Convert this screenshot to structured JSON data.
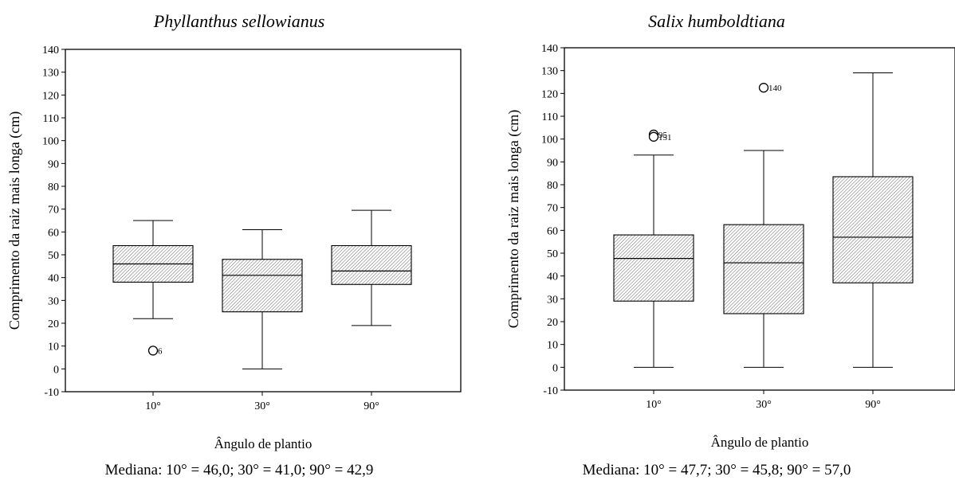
{
  "chart_data": [
    {
      "type": "box",
      "title": "Phyllanthus sellowianus",
      "xlabel": "Ângulo de plantio",
      "ylabel": "Comprimento da raiz mais longa (cm)",
      "ylim": [
        -10,
        140
      ],
      "yticks": [
        -10,
        0,
        10,
        20,
        30,
        40,
        50,
        60,
        70,
        80,
        90,
        100,
        110,
        120,
        130,
        140
      ],
      "categories": [
        "10°",
        "30°",
        "90°"
      ],
      "boxes": [
        {
          "whisker_low": 22,
          "q1": 38,
          "median": 46,
          "q3": 54,
          "whisker_high": 65,
          "outliers": [
            {
              "value": 8,
              "label": "6"
            }
          ]
        },
        {
          "whisker_low": 0,
          "q1": 25,
          "median": 41,
          "q3": 48,
          "whisker_high": 61,
          "outliers": []
        },
        {
          "whisker_low": 19,
          "q1": 37,
          "median": 42.9,
          "q3": 54,
          "whisker_high": 69.5,
          "outliers": []
        }
      ],
      "note": "Mediana: 10° = 46,0; 30° = 41,0; 90° = 42,9"
    },
    {
      "type": "box",
      "title": "Salix humboldtiana",
      "xlabel": "Ângulo de plantio",
      "ylabel": "Comprimento da raiz mais longa (cm)",
      "ylim": [
        -10,
        140
      ],
      "yticks": [
        -10,
        0,
        10,
        20,
        30,
        40,
        50,
        60,
        70,
        80,
        90,
        100,
        110,
        120,
        130,
        140
      ],
      "categories": [
        "10°",
        "30°",
        "90°"
      ],
      "boxes": [
        {
          "whisker_low": 0,
          "q1": 29,
          "median": 47.7,
          "q3": 58,
          "whisker_high": 93,
          "outliers": [
            {
              "value": 102,
              "label": "95"
            },
            {
              "value": 101,
              "label": "151"
            }
          ]
        },
        {
          "whisker_low": 0,
          "q1": 23.5,
          "median": 45.8,
          "q3": 62.5,
          "whisker_high": 95,
          "outliers": [
            {
              "value": 122.5,
              "label": "140"
            }
          ]
        },
        {
          "whisker_low": 0,
          "q1": 37,
          "median": 57,
          "q3": 83.5,
          "whisker_high": 129,
          "outliers": []
        }
      ],
      "note": "Mediana: 10° = 47,7; 30° = 45,8; 90° = 57,0"
    }
  ]
}
